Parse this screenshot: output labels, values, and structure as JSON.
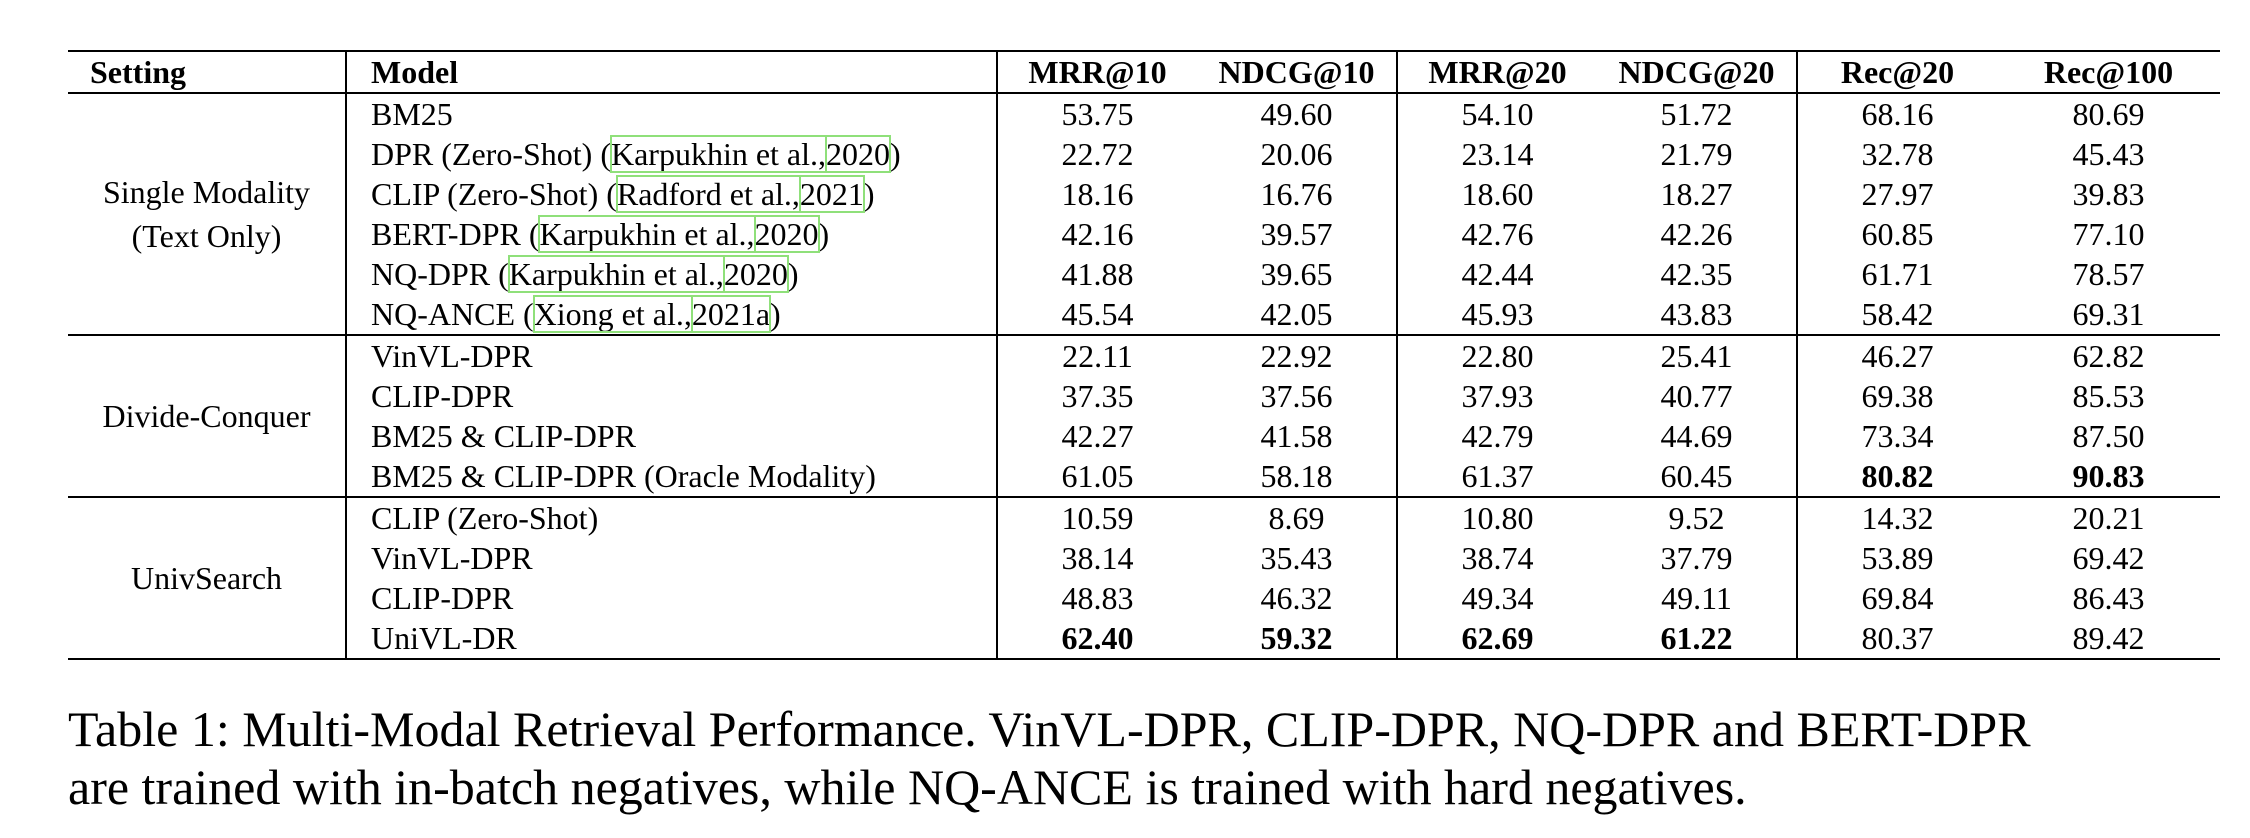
{
  "table": {
    "headers": {
      "setting": "Setting",
      "model": "Model",
      "metrics": [
        "MRR@10",
        "NDCG@10",
        "MRR@20",
        "NDCG@20",
        "Rec@20",
        "Rec@100"
      ]
    },
    "groups": [
      {
        "setting_lines": [
          "Single Modality",
          "(Text Only)"
        ],
        "rows": [
          {
            "model": "BM25",
            "cite_authors": "",
            "cite_year": "",
            "suffix": "",
            "values": [
              "53.75",
              "49.60",
              "54.10",
              "51.72",
              "68.16",
              "80.69"
            ],
            "bold": []
          },
          {
            "model": "DPR (Zero-Shot) (",
            "cite_authors": "Karpukhin et al.,",
            "cite_year": "2020",
            "suffix": ")",
            "values": [
              "22.72",
              "20.06",
              "23.14",
              "21.79",
              "32.78",
              "45.43"
            ],
            "bold": []
          },
          {
            "model": "CLIP (Zero-Shot) (",
            "cite_authors": "Radford et al.,",
            "cite_year": "2021",
            "suffix": ")",
            "values": [
              "18.16",
              "16.76",
              "18.60",
              "18.27",
              "27.97",
              "39.83"
            ],
            "bold": []
          },
          {
            "model": "BERT-DPR (",
            "cite_authors": "Karpukhin et al.,",
            "cite_year": "2020",
            "suffix": ")",
            "values": [
              "42.16",
              "39.57",
              "42.76",
              "42.26",
              "60.85",
              "77.10"
            ],
            "bold": []
          },
          {
            "model": "NQ-DPR (",
            "cite_authors": "Karpukhin et al.,",
            "cite_year": "2020",
            "suffix": ")",
            "values": [
              "41.88",
              "39.65",
              "42.44",
              "42.35",
              "61.71",
              "78.57"
            ],
            "bold": []
          },
          {
            "model": "NQ-ANCE (",
            "cite_authors": "Xiong et al.,",
            "cite_year": "2021a",
            "suffix": ")",
            "values": [
              "45.54",
              "42.05",
              "45.93",
              "43.83",
              "58.42",
              "69.31"
            ],
            "bold": []
          }
        ]
      },
      {
        "setting_lines": [
          "Divide-Conquer"
        ],
        "rows": [
          {
            "model": "VinVL-DPR",
            "cite_authors": "",
            "cite_year": "",
            "suffix": "",
            "values": [
              "22.11",
              "22.92",
              "22.80",
              "25.41",
              "46.27",
              "62.82"
            ],
            "bold": []
          },
          {
            "model": "CLIP-DPR",
            "cite_authors": "",
            "cite_year": "",
            "suffix": "",
            "values": [
              "37.35",
              "37.56",
              "37.93",
              "40.77",
              "69.38",
              "85.53"
            ],
            "bold": []
          },
          {
            "model": "BM25 & CLIP-DPR",
            "cite_authors": "",
            "cite_year": "",
            "suffix": "",
            "values": [
              "42.27",
              "41.58",
              "42.79",
              "44.69",
              "73.34",
              "87.50"
            ],
            "bold": []
          },
          {
            "model": "BM25 & CLIP-DPR (Oracle Modality)",
            "cite_authors": "",
            "cite_year": "",
            "suffix": "",
            "values": [
              "61.05",
              "58.18",
              "61.37",
              "60.45",
              "80.82",
              "90.83"
            ],
            "bold": [
              4,
              5
            ]
          }
        ]
      },
      {
        "setting_lines": [
          "UnivSearch"
        ],
        "rows": [
          {
            "model": "CLIP (Zero-Shot)",
            "cite_authors": "",
            "cite_year": "",
            "suffix": "",
            "values": [
              "10.59",
              "8.69",
              "10.80",
              "9.52",
              "14.32",
              "20.21"
            ],
            "bold": []
          },
          {
            "model": "VinVL-DPR",
            "cite_authors": "",
            "cite_year": "",
            "suffix": "",
            "values": [
              "38.14",
              "35.43",
              "38.74",
              "37.79",
              "53.89",
              "69.42"
            ],
            "bold": []
          },
          {
            "model": "CLIP-DPR",
            "cite_authors": "",
            "cite_year": "",
            "suffix": "",
            "values": [
              "48.83",
              "46.32",
              "49.34",
              "49.11",
              "69.84",
              "86.43"
            ],
            "bold": []
          },
          {
            "model": "UniVL-DR",
            "cite_authors": "",
            "cite_year": "",
            "suffix": "",
            "values": [
              "62.40",
              "59.32",
              "62.69",
              "61.22",
              "80.37",
              "89.42"
            ],
            "bold": [
              0,
              1,
              2,
              3
            ]
          }
        ]
      }
    ]
  },
  "caption": {
    "line1": "Table 1: Multi-Modal Retrieval Performance. VinVL-DPR, CLIP-DPR, NQ-DPR and BERT-DPR",
    "line2": "are trained with in-batch negatives, while NQ-ANCE is trained with hard negatives."
  },
  "colors": {
    "citation_box": "#8fe07a",
    "text": "#000000"
  }
}
